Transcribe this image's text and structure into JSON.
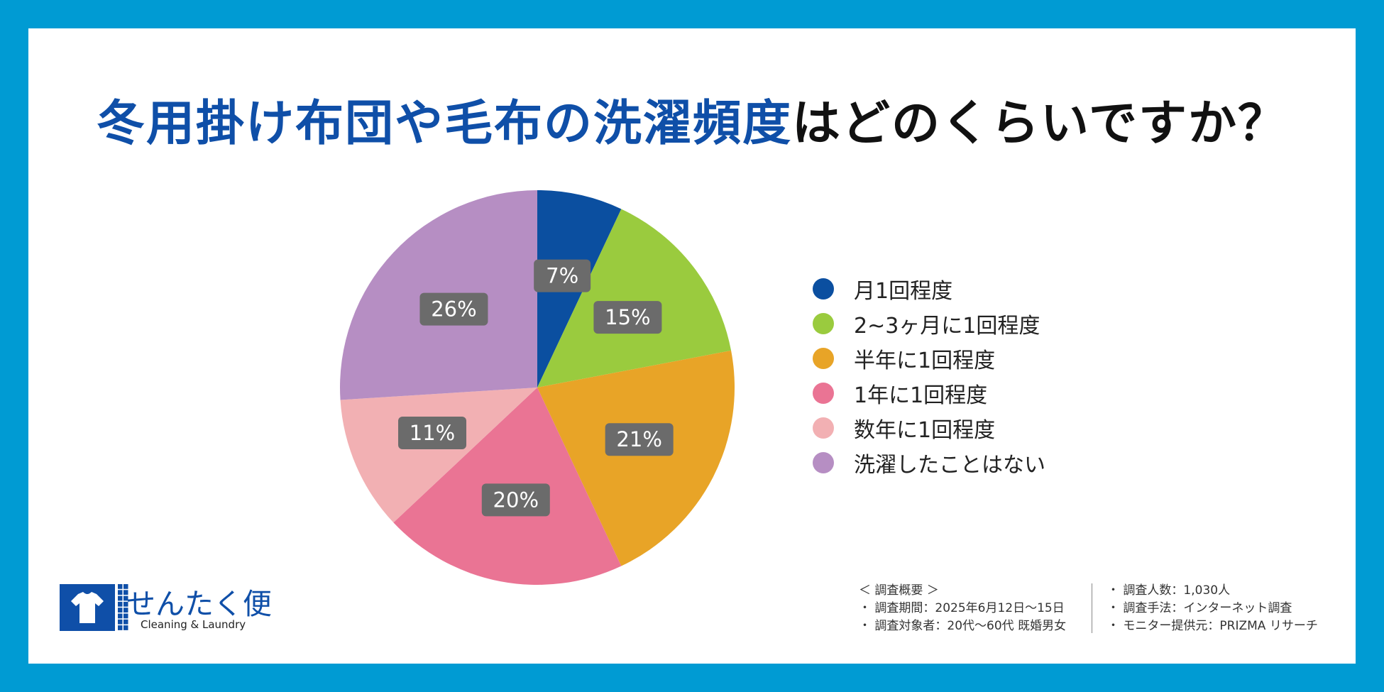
{
  "title": {
    "highlight": "冬用掛け布団や毛布の洗濯頻度",
    "rest": "はどのくらいですか？"
  },
  "chart_data": {
    "type": "pie",
    "categories": [
      "月1回程度",
      "2~3ヶ月に1回程度",
      "半年に1回程度",
      "1年に1回程度",
      "数年に1回程度",
      "洗濯したことはない"
    ],
    "values": [
      7,
      15,
      21,
      20,
      11,
      26
    ],
    "labels": [
      "7%",
      "15%",
      "21%",
      "20%",
      "11%",
      "26%"
    ],
    "colors": [
      "#0b4fa0",
      "#9acb3e",
      "#e8a427",
      "#ea7494",
      "#f2b0b3",
      "#b68ec3"
    ],
    "start": "12 o'clock",
    "direction": "clockwise",
    "legend_position": "right"
  },
  "logo": {
    "name": "せんたく便",
    "tagline": "Cleaning & Laundry",
    "icon": "t-shirt-icon",
    "color": "#0f4fa8"
  },
  "survey": {
    "heading": "＜ 調査概要 ＞",
    "col1": [
      "・ 調査期間：2025年6月12日～15日",
      "・ 調査対象者：20代～60代 既婚男女"
    ],
    "col2": [
      "・ 調査人数：1,030人",
      "・ 調査手法：インターネット調査",
      "・ モニター提供元：PRIZMA リサーチ"
    ]
  },
  "frame_color": "#009bd3"
}
